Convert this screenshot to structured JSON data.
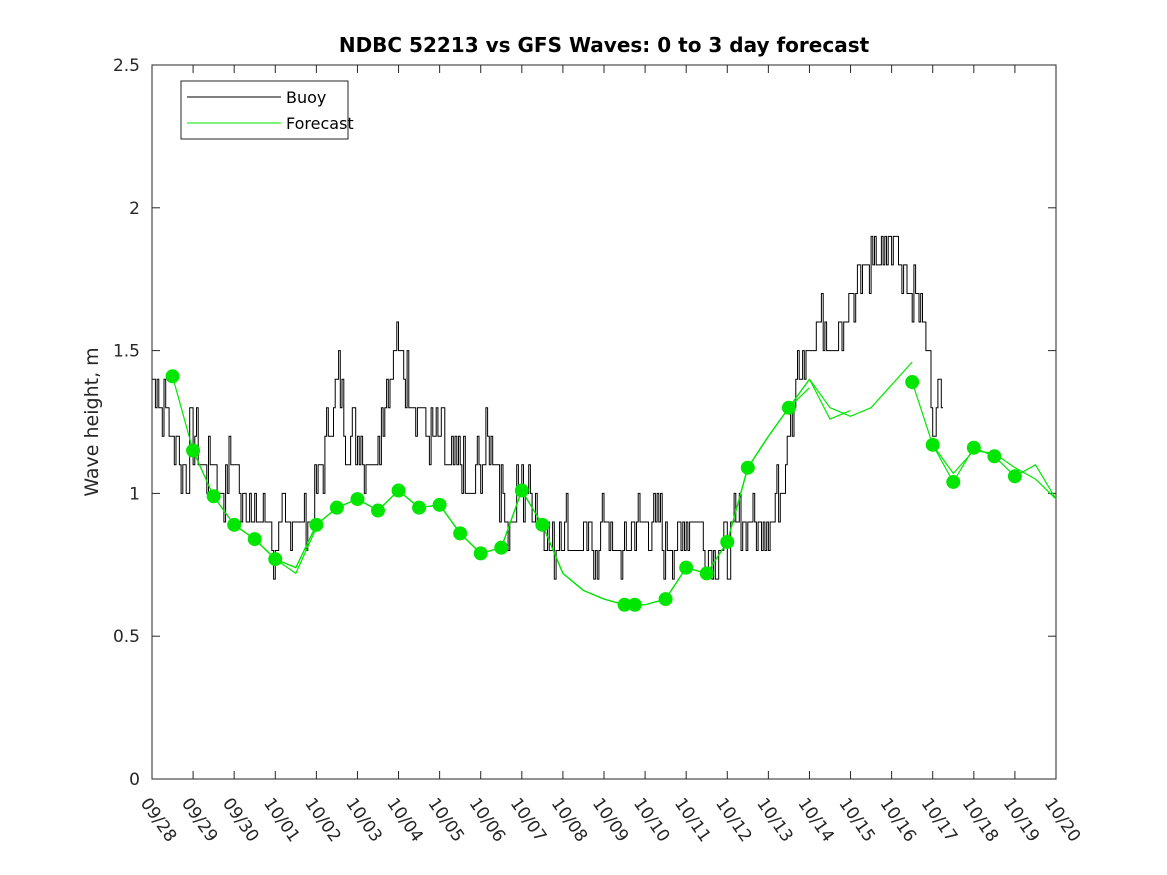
{
  "chart_data": {
    "type": "line",
    "title": "NDBC 52213 vs GFS Waves: 0 to 3 day forecast",
    "xlabel": "",
    "ylabel": "Wave height, m",
    "xlim": [
      "09/28",
      "10/20"
    ],
    "ylim": [
      0,
      2.5
    ],
    "x_tick_labels": [
      "09/28",
      "09/29",
      "09/30",
      "10/01",
      "10/02",
      "10/03",
      "10/04",
      "10/05",
      "10/06",
      "10/07",
      "10/08",
      "10/09",
      "10/10",
      "10/11",
      "10/12",
      "10/13",
      "10/14",
      "10/15",
      "10/16",
      "10/17",
      "10/18",
      "10/19",
      "10/20"
    ],
    "y_ticks": [
      0,
      0.5,
      1,
      1.5,
      2,
      2.5
    ],
    "y_tick_labels": [
      "0",
      "0.5",
      "1",
      "1.5",
      "2",
      "2.5"
    ],
    "grid": false,
    "legend": {
      "position": "top-left",
      "entries": [
        {
          "label": "Buoy",
          "color": "#000000"
        },
        {
          "label": "Forecast",
          "color": "#00e600"
        }
      ]
    },
    "series": [
      {
        "name": "Buoy",
        "color": "#000000",
        "note_days": "x values are days after 09/28 00:00",
        "x": [
          0,
          0.25,
          0.5,
          0.75,
          1,
          1.25,
          1.5,
          1.75,
          2,
          2.25,
          2.5,
          2.75,
          3,
          3.25,
          3.5,
          3.75,
          4,
          4.25,
          4.5,
          4.75,
          5,
          5.25,
          5.5,
          5.75,
          6,
          6.25,
          6.5,
          6.75,
          7,
          7.25,
          7.5,
          7.75,
          8,
          8.25,
          8.5,
          8.75,
          9,
          9.25,
          9.5,
          9.75,
          10,
          10.25,
          10.5,
          10.75,
          11,
          11.25,
          11.5,
          11.75,
          12,
          12.25,
          12.5,
          12.75,
          13,
          13.25,
          13.5,
          13.75,
          14,
          14.25,
          14.5,
          14.75,
          15,
          15.25,
          15.5,
          15.75,
          16,
          16.25,
          16.5,
          16.75,
          17,
          17.25,
          17.5,
          17.75,
          18,
          18.25,
          18.5,
          18.75,
          19,
          19.25
        ],
        "y": [
          1.4,
          1.3,
          1.2,
          1.1,
          1.2,
          1.1,
          1.1,
          1.0,
          1.1,
          1.0,
          0.9,
          0.9,
          0.8,
          0.9,
          0.9,
          0.9,
          1.0,
          1.2,
          1.4,
          1.2,
          1.2,
          1.1,
          1.2,
          1.4,
          1.5,
          1.4,
          1.3,
          1.2,
          1.2,
          1.1,
          1.1,
          1.0,
          1.1,
          1.2,
          1.0,
          0.9,
          1.0,
          1.0,
          0.9,
          0.8,
          0.9,
          0.8,
          0.8,
          0.8,
          0.9,
          0.8,
          0.8,
          0.9,
          0.9,
          0.9,
          0.8,
          0.8,
          0.9,
          0.9,
          0.8,
          0.8,
          0.8,
          0.9,
          0.9,
          0.9,
          0.9,
          1.0,
          1.3,
          1.4,
          1.5,
          1.6,
          1.5,
          1.6,
          1.7,
          1.8,
          1.8,
          1.8,
          1.9,
          1.8,
          1.7,
          1.6,
          1.3,
          1.4
        ]
      }
    ],
    "forecast_runs": [
      {
        "x": [
          0.5,
          1.0,
          1.5,
          2.0,
          2.5,
          3.0
        ],
        "y": [
          1.41,
          1.15,
          0.99,
          0.89,
          0.84,
          0.77
        ]
      },
      {
        "x": [
          1.0,
          1.5,
          2.0,
          2.5,
          3.0,
          3.5,
          4.0
        ],
        "y": [
          1.15,
          0.99,
          0.89,
          0.84,
          0.77,
          0.72,
          0.88
        ]
      },
      {
        "x": [
          2.0,
          2.5,
          3.0,
          3.5,
          4.0,
          4.5,
          5.0
        ],
        "y": [
          0.89,
          0.84,
          0.77,
          0.74,
          0.89,
          0.95,
          0.98
        ]
      },
      {
        "x": [
          3.0,
          3.5,
          4.0,
          4.5,
          5.0,
          5.5,
          6.0
        ],
        "y": [
          0.77,
          0.74,
          0.89,
          0.95,
          0.98,
          0.94,
          1.01
        ]
      },
      {
        "x": [
          4.0,
          4.5,
          5.0,
          5.5,
          6.0,
          6.5,
          7.0
        ],
        "y": [
          0.89,
          0.95,
          0.98,
          0.94,
          1.01,
          0.95,
          0.96
        ]
      },
      {
        "x": [
          5.0,
          5.5,
          6.0,
          6.5,
          7.0,
          7.5,
          8.0
        ],
        "y": [
          0.98,
          0.94,
          1.01,
          0.95,
          0.96,
          0.86,
          0.79
        ]
      },
      {
        "x": [
          6.0,
          6.5,
          7.0,
          7.5,
          8.0,
          8.5,
          9.0
        ],
        "y": [
          1.01,
          0.95,
          0.96,
          0.86,
          0.79,
          0.81,
          1.01
        ]
      },
      {
        "x": [
          7.0,
          7.5,
          8.0,
          8.5,
          9.0,
          9.5,
          10.0
        ],
        "y": [
          0.96,
          0.86,
          0.79,
          0.81,
          1.01,
          0.89,
          0.72
        ]
      },
      {
        "x": [
          8.0,
          8.5,
          9.0,
          9.5,
          10.0,
          10.5,
          11.0
        ],
        "y": [
          0.79,
          0.81,
          1.01,
          0.89,
          0.72,
          0.66,
          0.63
        ]
      },
      {
        "x": [
          9.0,
          9.5,
          10.0,
          10.5,
          11.0,
          11.5,
          12.0
        ],
        "y": [
          1.01,
          0.89,
          0.72,
          0.66,
          0.63,
          0.61,
          0.61
        ]
      },
      {
        "x": [
          10.0,
          10.5,
          11.0,
          11.5,
          12.0,
          12.5,
          13.0
        ],
        "y": [
          0.72,
          0.66,
          0.63,
          0.61,
          0.61,
          0.63,
          0.74
        ]
      },
      {
        "x": [
          11.0,
          11.5,
          12.0,
          12.5,
          13.0,
          13.5,
          14.0
        ],
        "y": [
          0.63,
          0.61,
          0.61,
          0.63,
          0.74,
          0.72,
          0.83
        ]
      },
      {
        "x": [
          12.0,
          12.5,
          13.0,
          13.5,
          14.0,
          14.5,
          15.0
        ],
        "y": [
          0.61,
          0.63,
          0.74,
          0.72,
          0.83,
          1.09,
          1.2
        ]
      },
      {
        "x": [
          13.0,
          13.5,
          14.0,
          14.5,
          15.0,
          15.5,
          16.0
        ],
        "y": [
          0.74,
          0.72,
          0.83,
          1.09,
          1.2,
          1.3,
          1.37
        ]
      },
      {
        "x": [
          14.0,
          14.5,
          15.0,
          15.5,
          16.0,
          16.5,
          17.0
        ],
        "y": [
          0.83,
          1.09,
          1.2,
          1.3,
          1.4,
          1.26,
          1.29
        ]
      },
      {
        "x": [
          15.0,
          15.5,
          16.0,
          16.5,
          17.0,
          17.5,
          18.5
        ],
        "y": [
          1.2,
          1.3,
          1.4,
          1.3,
          1.27,
          1.3,
          1.46
        ]
      },
      {
        "x": [
          18.5,
          19.0,
          19.5,
          20.0,
          20.5,
          21.0,
          21.5,
          22.0
        ],
        "y": [
          1.39,
          1.17,
          1.04,
          1.16,
          1.13,
          1.06,
          1.1,
          0.98
        ]
      },
      {
        "x": [
          19.0,
          19.5,
          20.0,
          20.5,
          21.0,
          21.5,
          22.0
        ],
        "y": [
          1.17,
          1.07,
          1.15,
          1.14,
          1.09,
          1.05,
          0.98
        ]
      }
    ],
    "forecast_markers": {
      "x": [
        0.5,
        1.0,
        1.5,
        2.0,
        2.5,
        3.0,
        4.0,
        4.5,
        5.0,
        5.5,
        6.0,
        6.5,
        7.0,
        7.5,
        8.0,
        8.5,
        9.0,
        9.5,
        11.5,
        11.75,
        12.5,
        13.0,
        13.5,
        14.0,
        14.5,
        15.5,
        18.5,
        19.0,
        19.5,
        20.0,
        20.5,
        21.0
      ],
      "y": [
        1.41,
        1.15,
        0.99,
        0.89,
        0.84,
        0.77,
        0.89,
        0.95,
        0.98,
        0.94,
        1.01,
        0.95,
        0.96,
        0.86,
        0.79,
        0.81,
        1.01,
        0.89,
        0.61,
        0.61,
        0.63,
        0.74,
        0.72,
        0.83,
        1.09,
        1.3,
        1.39,
        1.17,
        1.04,
        1.16,
        1.13,
        1.06
      ]
    }
  }
}
